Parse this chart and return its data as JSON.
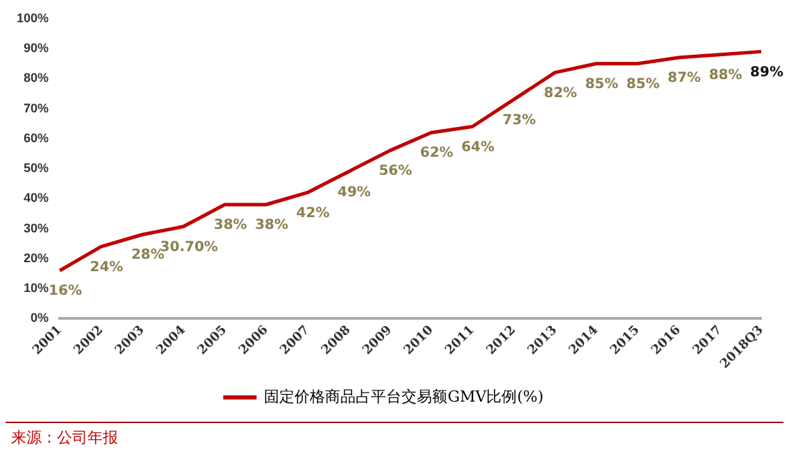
{
  "chart_data": {
    "type": "line",
    "categories": [
      "2001",
      "2002",
      "2003",
      "2004",
      "2005",
      "2006",
      "2007",
      "2008",
      "2009",
      "2010",
      "2011",
      "2012",
      "2013",
      "2014",
      "2015",
      "2016",
      "2017",
      "2018Q3"
    ],
    "series": [
      {
        "name": "固定价格商品占平台交易额GMV比例(%)",
        "color": "#c00000",
        "values": [
          16,
          24,
          28,
          30.7,
          38,
          38,
          42,
          49,
          56,
          62,
          64,
          73,
          82,
          85,
          85,
          87,
          88,
          89
        ],
        "value_labels": [
          "16%",
          "24%",
          "28%",
          "30.70%",
          "38%",
          "38%",
          "42%",
          "49%",
          "56%",
          "62%",
          "64%",
          "73%",
          "82%",
          "85%",
          "85%",
          "87%",
          "88%",
          "89%"
        ]
      }
    ],
    "ylim": [
      0,
      100
    ],
    "yticks": [
      {
        "value": 0,
        "label": "0%"
      },
      {
        "value": 10,
        "label": "10%"
      },
      {
        "value": 20,
        "label": "20%"
      },
      {
        "value": 30,
        "label": "30%"
      },
      {
        "value": 40,
        "label": "40%"
      },
      {
        "value": 50,
        "label": "50%"
      },
      {
        "value": 60,
        "label": "60%"
      },
      {
        "value": 70,
        "label": "70%"
      },
      {
        "value": 80,
        "label": "80%"
      },
      {
        "value": 90,
        "label": "90%"
      },
      {
        "value": 100,
        "label": "100%"
      }
    ],
    "legend": "bottom",
    "marker": "none",
    "line_style": "solid",
    "annotations": [
      "来源：公司年报"
    ]
  }
}
